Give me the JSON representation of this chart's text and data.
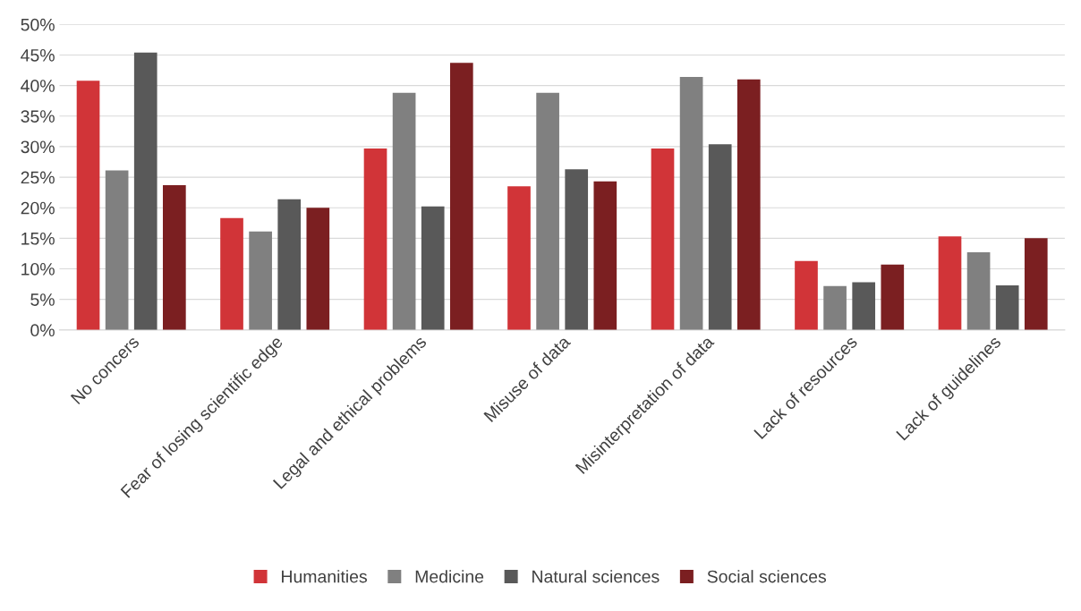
{
  "chart_data": {
    "type": "bar",
    "categories": [
      "No concers",
      "Fear of losing scientific edge",
      "Legal and ethical problems",
      "Misuse of data",
      "Misinterpretation of data",
      "Lack of resources",
      "Lack of guidelines"
    ],
    "series": [
      {
        "name": "Humanities",
        "color": "#d13438",
        "values": [
          40.8,
          18.3,
          29.7,
          23.5,
          29.7,
          11.3,
          15.3
        ]
      },
      {
        "name": "Medicine",
        "color": "#808080",
        "values": [
          26.1,
          16.1,
          38.8,
          38.8,
          41.4,
          7.2,
          12.7
        ]
      },
      {
        "name": "Natural sciences",
        "color": "#595959",
        "values": [
          45.4,
          21.4,
          20.2,
          26.3,
          30.4,
          7.8,
          7.3
        ]
      },
      {
        "name": "Social sciences",
        "color": "#7b1f21",
        "values": [
          23.7,
          20.0,
          43.7,
          24.3,
          41.0,
          10.7,
          15.0
        ]
      }
    ],
    "ylim": [
      0,
      50
    ],
    "yticks": [
      {
        "value": 0,
        "label": "0%"
      },
      {
        "value": 5,
        "label": "5%"
      },
      {
        "value": 10,
        "label": "10%"
      },
      {
        "value": 15,
        "label": "15%"
      },
      {
        "value": 20,
        "label": "20%"
      },
      {
        "value": 25,
        "label": "25%"
      },
      {
        "value": 30,
        "label": "30%"
      },
      {
        "value": 35,
        "label": "35%"
      },
      {
        "value": 40,
        "label": "40%"
      },
      {
        "value": 45,
        "label": "45%"
      },
      {
        "value": 50,
        "label": "50%"
      }
    ],
    "grid": "y",
    "legend": "bottom"
  }
}
